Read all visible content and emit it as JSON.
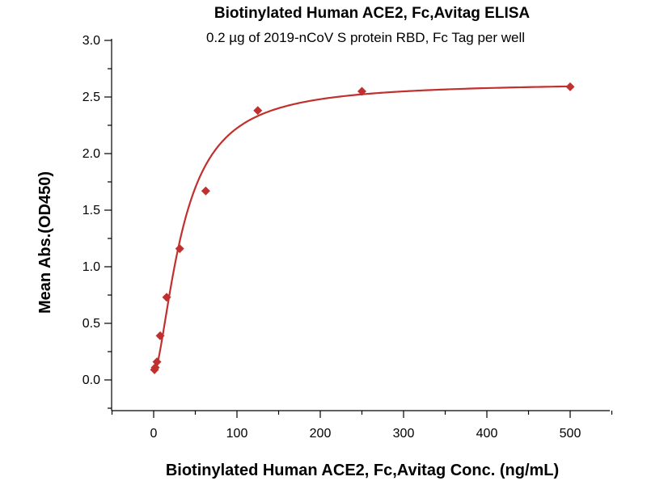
{
  "chart_data": {
    "type": "scatter",
    "title": "Biotinylated Human ACE2, Fc,Avitag ELISA",
    "subtitle": "0.2 µg of 2019-nCoV S protein RBD, Fc Tag per well",
    "xlabel": "Biotinylated Human ACE2, Fc,Avitag Conc. (ng/mL)",
    "ylabel": "Mean Abs.(OD450)",
    "xlim": [
      -50,
      550
    ],
    "ylim": [
      -0.25,
      3.0
    ],
    "x_ticks": [
      0,
      100,
      200,
      300,
      400,
      500
    ],
    "y_ticks": [
      0.0,
      0.5,
      1.0,
      1.5,
      2.0,
      2.5,
      3.0
    ],
    "x_tick_labels": [
      "0",
      "100",
      "200",
      "300",
      "400",
      "500"
    ],
    "y_tick_labels": [
      "0.0",
      "0.5",
      "1.0",
      "1.5",
      "2.0",
      "2.5",
      "3.0"
    ],
    "grid": false,
    "legend": "none",
    "series": [
      {
        "marker": "diamond",
        "color": "#c0302e",
        "x": [
          0.98,
          1.95,
          3.9,
          7.8,
          15.6,
          31.25,
          62.5,
          125,
          250,
          500
        ],
        "y": [
          0.09,
          0.11,
          0.16,
          0.39,
          0.73,
          1.16,
          1.67,
          2.38,
          2.55,
          2.59
        ]
      }
    ],
    "fit_curve": {
      "model": "4PL",
      "color": "#c0302e",
      "bottom": 0.05,
      "top": 2.63,
      "ec50": 35,
      "hill": 1.6
    }
  }
}
